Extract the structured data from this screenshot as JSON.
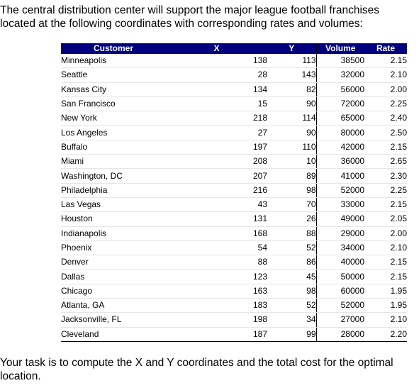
{
  "intro_line1": "The central distribution center will support the major league football franchises",
  "intro_line2": "located at the following coordinates with corresponding rates and volumes:",
  "outro_line1": "Your task is to compute the X and Y coordinates and the total cost for the optimal",
  "outro_line2": "location.",
  "table": {
    "headers": [
      "Customer",
      "X",
      "Y",
      "Volume",
      "Rate"
    ],
    "rows": [
      {
        "customer": "Minneapolis",
        "x": "138",
        "y": "113",
        "volume": "38500",
        "rate": "2.15"
      },
      {
        "customer": "Seattle",
        "x": "28",
        "y": "143",
        "volume": "32000",
        "rate": "2.10"
      },
      {
        "customer": "Kansas City",
        "x": "134",
        "y": "82",
        "volume": "56000",
        "rate": "2.00"
      },
      {
        "customer": "San Francisco",
        "x": "15",
        "y": "90",
        "volume": "72000",
        "rate": "2.25"
      },
      {
        "customer": "New York",
        "x": "218",
        "y": "114",
        "volume": "65000",
        "rate": "2.40"
      },
      {
        "customer": "Los Angeles",
        "x": "27",
        "y": "90",
        "volume": "80000",
        "rate": "2.50"
      },
      {
        "customer": "Buffalo",
        "x": "197",
        "y": "110",
        "volume": "42000",
        "rate": "2.15"
      },
      {
        "customer": "Miami",
        "x": "208",
        "y": "10",
        "volume": "36000",
        "rate": "2.65"
      },
      {
        "customer": "Washington, DC",
        "x": "207",
        "y": "89",
        "volume": "41000",
        "rate": "2.30"
      },
      {
        "customer": "Philadelphia",
        "x": "216",
        "y": "98",
        "volume": "52000",
        "rate": "2.25"
      },
      {
        "customer": "Las Vegas",
        "x": "43",
        "y": "70",
        "volume": "33000",
        "rate": "2.15"
      },
      {
        "customer": "Houston",
        "x": "131",
        "y": "26",
        "volume": "49000",
        "rate": "2.05"
      },
      {
        "customer": "Indianapolis",
        "x": "168",
        "y": "88",
        "volume": "29000",
        "rate": "2.00"
      },
      {
        "customer": "Phoenix",
        "x": "54",
        "y": "52",
        "volume": "34000",
        "rate": "2.10"
      },
      {
        "customer": "Denver",
        "x": "88",
        "y": "86",
        "volume": "40000",
        "rate": "2.15"
      },
      {
        "customer": "Dallas",
        "x": "123",
        "y": "45",
        "volume": "50000",
        "rate": "2.15"
      },
      {
        "customer": "Chicago",
        "x": "163",
        "y": "98",
        "volume": "60000",
        "rate": "1.95"
      },
      {
        "customer": "Atlanta, GA",
        "x": "183",
        "y": "52",
        "volume": "52000",
        "rate": "1.95"
      },
      {
        "customer": "Jacksonville, FL",
        "x": "198",
        "y": "34",
        "volume": "27000",
        "rate": "2.10"
      },
      {
        "customer": "Cleveland",
        "x": "187",
        "y": "99",
        "volume": "28000",
        "rate": "2.20"
      }
    ]
  },
  "colors": {
    "header_bg": "#00007f",
    "header_text": "#ffffff"
  }
}
